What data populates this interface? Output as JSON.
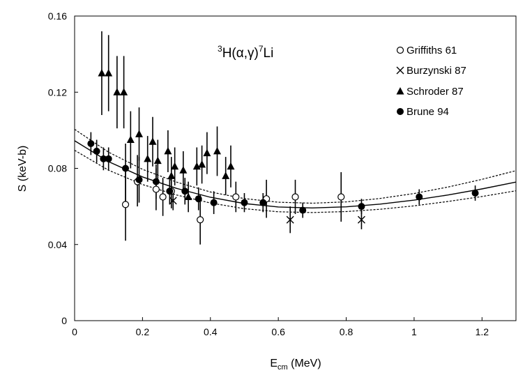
{
  "chart_data": {
    "type": "scatter",
    "title": "",
    "annotation": {
      "sup_a": "3",
      "mid": "H(α,γ)",
      "sup_b": "7",
      "tail": "Li"
    },
    "xlabel": {
      "main": "E",
      "sub": "cm",
      "rest": " (MeV)"
    },
    "ylabel": "S (keV-b)",
    "xlim": [
      0,
      1.3
    ],
    "ylim": [
      0,
      0.16
    ],
    "xticks": [
      0,
      0.2,
      0.4,
      0.6,
      0.8,
      1.0,
      1.2
    ],
    "xtick_labels": [
      "0",
      "0.2",
      "0.4",
      "0.6",
      "0.8",
      "1",
      "1.2"
    ],
    "yticks": [
      0,
      0.04,
      0.08,
      0.12,
      0.16
    ],
    "ytick_labels": [
      "0",
      "0.04",
      "0.08",
      "0.12",
      "0.16"
    ],
    "grid": false,
    "legend_position": "top-right",
    "series": [
      {
        "name": "Griffiths 61",
        "marker": "open-circle",
        "points": [
          {
            "x": 0.15,
            "y": 0.061,
            "lo": 0.042,
            "hi": 0.08
          },
          {
            "x": 0.185,
            "y": 0.073,
            "lo": 0.06,
            "hi": 0.087
          },
          {
            "x": 0.24,
            "y": 0.069,
            "lo": 0.058,
            "hi": 0.08
          },
          {
            "x": 0.26,
            "y": 0.065,
            "lo": 0.055,
            "hi": 0.075
          },
          {
            "x": 0.285,
            "y": 0.068,
            "lo": 0.059,
            "hi": 0.077
          },
          {
            "x": 0.37,
            "y": 0.053,
            "lo": 0.04,
            "hi": 0.066
          },
          {
            "x": 0.475,
            "y": 0.065,
            "lo": 0.057,
            "hi": 0.073
          },
          {
            "x": 0.565,
            "y": 0.064,
            "lo": 0.054,
            "hi": 0.074
          },
          {
            "x": 0.65,
            "y": 0.065,
            "lo": 0.056,
            "hi": 0.074
          },
          {
            "x": 0.785,
            "y": 0.065,
            "lo": 0.052,
            "hi": 0.078
          }
        ]
      },
      {
        "name": "Burzynski 87",
        "marker": "x",
        "points": [
          {
            "x": 0.29,
            "y": 0.063,
            "lo": 0.058,
            "hi": 0.068
          },
          {
            "x": 0.635,
            "y": 0.053,
            "lo": 0.046,
            "hi": 0.06
          },
          {
            "x": 0.845,
            "y": 0.053,
            "lo": 0.048,
            "hi": 0.058
          }
        ]
      },
      {
        "name": "Schroder 87",
        "marker": "filled-triangle",
        "points": [
          {
            "x": 0.08,
            "y": 0.13,
            "lo": 0.108,
            "hi": 0.152
          },
          {
            "x": 0.1,
            "y": 0.13,
            "lo": 0.11,
            "hi": 0.15
          },
          {
            "x": 0.125,
            "y": 0.12,
            "lo": 0.101,
            "hi": 0.139
          },
          {
            "x": 0.145,
            "y": 0.12,
            "lo": 0.101,
            "hi": 0.139
          },
          {
            "x": 0.165,
            "y": 0.095,
            "lo": 0.08,
            "hi": 0.11
          },
          {
            "x": 0.19,
            "y": 0.098,
            "lo": 0.084,
            "hi": 0.112
          },
          {
            "x": 0.215,
            "y": 0.085,
            "lo": 0.073,
            "hi": 0.097
          },
          {
            "x": 0.23,
            "y": 0.094,
            "lo": 0.081,
            "hi": 0.107
          },
          {
            "x": 0.245,
            "y": 0.084,
            "lo": 0.073,
            "hi": 0.095
          },
          {
            "x": 0.275,
            "y": 0.089,
            "lo": 0.078,
            "hi": 0.1
          },
          {
            "x": 0.285,
            "y": 0.076,
            "lo": 0.066,
            "hi": 0.086
          },
          {
            "x": 0.295,
            "y": 0.081,
            "lo": 0.071,
            "hi": 0.091
          },
          {
            "x": 0.32,
            "y": 0.079,
            "lo": 0.069,
            "hi": 0.089
          },
          {
            "x": 0.335,
            "y": 0.065,
            "lo": 0.057,
            "hi": 0.073
          },
          {
            "x": 0.36,
            "y": 0.081,
            "lo": 0.071,
            "hi": 0.091
          },
          {
            "x": 0.375,
            "y": 0.082,
            "lo": 0.072,
            "hi": 0.092
          },
          {
            "x": 0.39,
            "y": 0.088,
            "lo": 0.077,
            "hi": 0.099
          },
          {
            "x": 0.42,
            "y": 0.089,
            "lo": 0.076,
            "hi": 0.102
          },
          {
            "x": 0.445,
            "y": 0.076,
            "lo": 0.066,
            "hi": 0.086
          },
          {
            "x": 0.46,
            "y": 0.081,
            "lo": 0.07,
            "hi": 0.092
          }
        ]
      },
      {
        "name": "Brune 94",
        "marker": "filled-circle",
        "points": [
          {
            "x": 0.048,
            "y": 0.093,
            "lo": 0.087,
            "hi": 0.099
          },
          {
            "x": 0.065,
            "y": 0.089,
            "lo": 0.083,
            "hi": 0.095
          },
          {
            "x": 0.085,
            "y": 0.085,
            "lo": 0.079,
            "hi": 0.091
          },
          {
            "x": 0.1,
            "y": 0.085,
            "lo": 0.079,
            "hi": 0.091
          },
          {
            "x": 0.15,
            "y": 0.08,
            "lo": 0.062,
            "hi": 0.093
          },
          {
            "x": 0.19,
            "y": 0.074,
            "lo": 0.062,
            "hi": 0.086
          },
          {
            "x": 0.24,
            "y": 0.073,
            "lo": 0.064,
            "hi": 0.082
          },
          {
            "x": 0.28,
            "y": 0.068,
            "lo": 0.061,
            "hi": 0.075
          },
          {
            "x": 0.325,
            "y": 0.068,
            "lo": 0.061,
            "hi": 0.075
          },
          {
            "x": 0.365,
            "y": 0.064,
            "lo": 0.058,
            "hi": 0.07
          },
          {
            "x": 0.41,
            "y": 0.062,
            "lo": 0.056,
            "hi": 0.068
          },
          {
            "x": 0.5,
            "y": 0.062,
            "lo": 0.057,
            "hi": 0.067
          },
          {
            "x": 0.555,
            "y": 0.062,
            "lo": 0.057,
            "hi": 0.067
          },
          {
            "x": 0.672,
            "y": 0.058,
            "lo": 0.054,
            "hi": 0.062
          },
          {
            "x": 0.845,
            "y": 0.06,
            "lo": 0.056,
            "hi": 0.064
          },
          {
            "x": 1.015,
            "y": 0.065,
            "lo": 0.061,
            "hi": 0.069
          },
          {
            "x": 1.18,
            "y": 0.067,
            "lo": 0.063,
            "hi": 0.071
          }
        ]
      }
    ],
    "fit_curves": [
      {
        "style": "solid",
        "points": [
          [
            0,
            0.0945
          ],
          [
            0.1,
            0.0835
          ],
          [
            0.2,
            0.0755
          ],
          [
            0.3,
            0.0695
          ],
          [
            0.4,
            0.0648
          ],
          [
            0.5,
            0.0615
          ],
          [
            0.6,
            0.0597
          ],
          [
            0.7,
            0.0592
          ],
          [
            0.8,
            0.0598
          ],
          [
            0.9,
            0.0612
          ],
          [
            1.0,
            0.0633
          ],
          [
            1.1,
            0.066
          ],
          [
            1.2,
            0.0692
          ],
          [
            1.3,
            0.0728
          ]
        ]
      },
      {
        "style": "dotted",
        "points": [
          [
            0,
            0.1005
          ],
          [
            0.1,
            0.0885
          ],
          [
            0.2,
            0.0795
          ],
          [
            0.3,
            0.0728
          ],
          [
            0.4,
            0.0676
          ],
          [
            0.5,
            0.0641
          ],
          [
            0.6,
            0.0622
          ],
          [
            0.7,
            0.0617
          ],
          [
            0.8,
            0.0624
          ],
          [
            0.9,
            0.0642
          ],
          [
            1.0,
            0.0668
          ],
          [
            1.1,
            0.0702
          ],
          [
            1.2,
            0.0742
          ],
          [
            1.3,
            0.0788
          ]
        ]
      },
      {
        "style": "dotted",
        "points": [
          [
            0,
            0.0895
          ],
          [
            0.1,
            0.079
          ],
          [
            0.2,
            0.0715
          ],
          [
            0.3,
            0.066
          ],
          [
            0.4,
            0.0618
          ],
          [
            0.5,
            0.0588
          ],
          [
            0.6,
            0.0572
          ],
          [
            0.7,
            0.0568
          ],
          [
            0.8,
            0.0573
          ],
          [
            0.9,
            0.0585
          ],
          [
            1.0,
            0.0603
          ],
          [
            1.1,
            0.0626
          ],
          [
            1.2,
            0.0652
          ],
          [
            1.3,
            0.0682
          ]
        ]
      }
    ]
  }
}
